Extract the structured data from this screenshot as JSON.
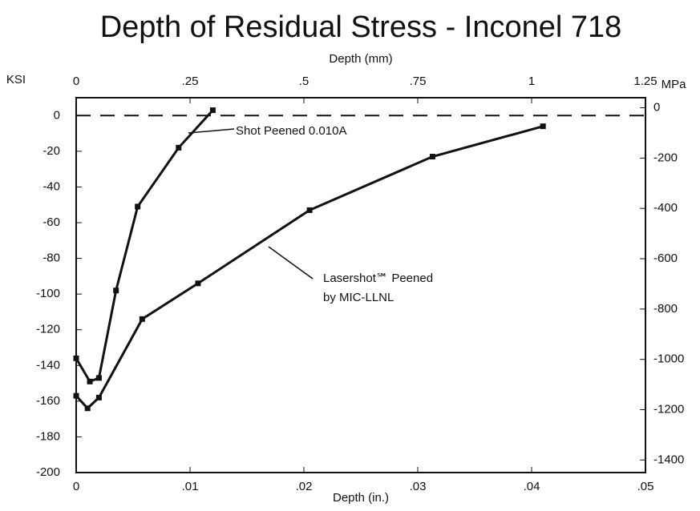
{
  "chart_data": {
    "type": "line",
    "title": "Depth of Residual Stress - Inconel 718",
    "xlabel": "Depth (in.)",
    "x2label": "Depth (mm)",
    "ylabel": "KSI",
    "y2label": "MPa",
    "xlim": [
      0,
      0.05
    ],
    "xticks": [
      0,
      {
        "value": 0.01,
        "label": ".01"
      },
      {
        "value": 0.02,
        "label": ".02"
      },
      {
        "value": 0.03,
        "label": ".03"
      },
      {
        "value": 0.04,
        "label": ".04"
      },
      {
        "value": 0.05,
        "label": ".05"
      }
    ],
    "x2lim": [
      0,
      1.25
    ],
    "x2ticks": [
      0,
      {
        "value": 0.25,
        "label": ".25"
      },
      {
        "value": 0.5,
        "label": ".5"
      },
      {
        "value": 0.75,
        "label": ".75"
      },
      1,
      1.25
    ],
    "ylim": [
      -200,
      10
    ],
    "yticks": [
      0,
      -20,
      -40,
      -60,
      -80,
      -100,
      -120,
      -140,
      -160,
      -180,
      -200
    ],
    "y2lim": [
      -1450,
      40
    ],
    "y2ticks": [
      0,
      -200,
      -400,
      -600,
      -800,
      -1000,
      -1200,
      -1400
    ],
    "series": [
      {
        "name": "Shot Peened 0.010A",
        "color": "#111",
        "x": [
          0,
          0.0012,
          0.002,
          0.0035,
          0.0054,
          0.009,
          0.012
        ],
        "values": [
          -136,
          -149,
          -147,
          -98,
          -51,
          -18,
          3
        ]
      },
      {
        "name": "Lasershot℠ Peened",
        "color": "#111",
        "x": [
          0,
          0.001,
          0.002,
          0.0058,
          0.0107,
          0.0205,
          0.0313,
          0.041
        ],
        "values": [
          -157,
          -164,
          -158,
          -114,
          -94,
          -53,
          -23,
          -6
        ]
      }
    ],
    "annotations": [
      "by MIC-LLNL"
    ]
  }
}
